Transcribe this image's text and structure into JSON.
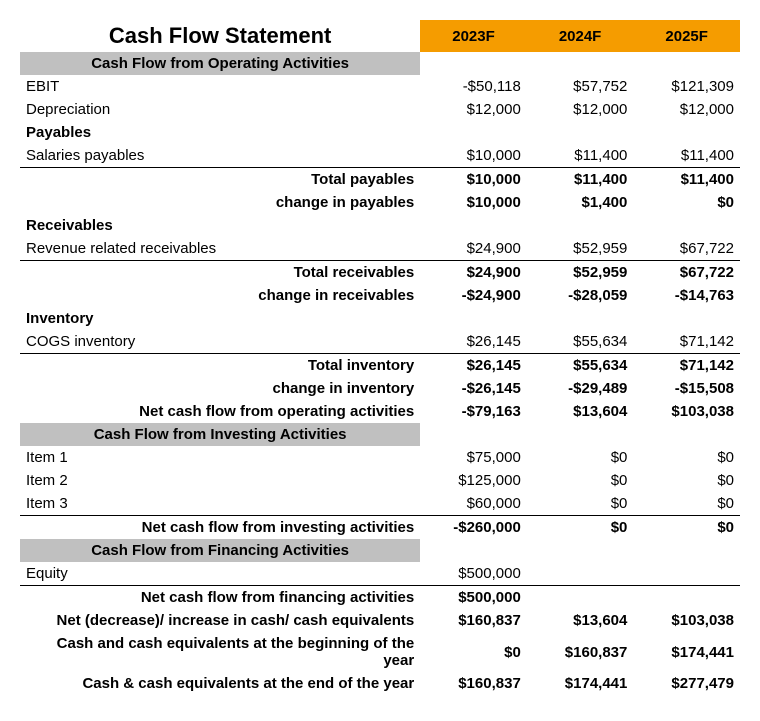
{
  "colors": {
    "header_bg": "#f59c00",
    "section_bg": "#c0c0c0",
    "border": "#000000",
    "text": "#000000",
    "background": "#ffffff"
  },
  "title": "Cash Flow Statement",
  "years": [
    "2023F",
    "2024F",
    "2025F"
  ],
  "sections": {
    "operating": "Cash Flow from Operating Activities",
    "investing": "Cash Flow from Investing Activities",
    "financing": "Cash Flow from Financing Activities"
  },
  "rows": {
    "ebit": {
      "label": "EBIT",
      "v": [
        "-$50,118",
        "$57,752",
        "$121,309"
      ]
    },
    "depreciation": {
      "label": "Depreciation",
      "v": [
        "$12,000",
        "$12,000",
        "$12,000"
      ]
    },
    "payables_hdr": {
      "label": "Payables"
    },
    "salaries_payables": {
      "label": "Salaries payables",
      "v": [
        "$10,000",
        "$11,400",
        "$11,400"
      ]
    },
    "total_payables": {
      "label": "Total payables",
      "v": [
        "$10,000",
        "$11,400",
        "$11,400"
      ]
    },
    "change_payables": {
      "label": "change in payables",
      "v": [
        "$10,000",
        "$1,400",
        "$0"
      ]
    },
    "receivables_hdr": {
      "label": "Receivables"
    },
    "rev_receivables": {
      "label": "Revenue related receivables",
      "v": [
        "$24,900",
        "$52,959",
        "$67,722"
      ]
    },
    "total_receivables": {
      "label": "Total receivables",
      "v": [
        "$24,900",
        "$52,959",
        "$67,722"
      ]
    },
    "change_receivables": {
      "label": "change in receivables",
      "v": [
        "-$24,900",
        "-$28,059",
        "-$14,763"
      ]
    },
    "inventory_hdr": {
      "label": "Inventory"
    },
    "cogs_inventory": {
      "label": "COGS inventory",
      "v": [
        "$26,145",
        "$55,634",
        "$71,142"
      ]
    },
    "total_inventory": {
      "label": "Total inventory",
      "v": [
        "$26,145",
        "$55,634",
        "$71,142"
      ]
    },
    "change_inventory": {
      "label": "change in inventory",
      "v": [
        "-$26,145",
        "-$29,489",
        "-$15,508"
      ]
    },
    "net_operating": {
      "label": "Net cash flow from operating activities",
      "v": [
        "-$79,163",
        "$13,604",
        "$103,038"
      ]
    },
    "item1": {
      "label": "Item 1",
      "v": [
        "$75,000",
        "$0",
        "$0"
      ]
    },
    "item2": {
      "label": "Item 2",
      "v": [
        "$125,000",
        "$0",
        "$0"
      ]
    },
    "item3": {
      "label": "Item 3",
      "v": [
        "$60,000",
        "$0",
        "$0"
      ]
    },
    "net_investing": {
      "label": "Net cash flow from investing activities",
      "v": [
        "-$260,000",
        "$0",
        "$0"
      ]
    },
    "equity": {
      "label": "Equity",
      "v": [
        "$500,000",
        "",
        ""
      ]
    },
    "net_financing": {
      "label": "Net cash flow from financing activities",
      "v": [
        "$500,000",
        "",
        ""
      ]
    },
    "net_change": {
      "label": "Net (decrease)/ increase in cash/ cash equivalents",
      "v": [
        "$160,837",
        "$13,604",
        "$103,038"
      ]
    },
    "cash_begin": {
      "label": "Cash and cash equivalents at the beginning of the year",
      "v": [
        "$0",
        "$160,837",
        "$174,441"
      ]
    },
    "cash_end": {
      "label": "Cash & cash equivalents at the end of the year",
      "v": [
        "$160,837",
        "$174,441",
        "$277,479"
      ]
    }
  }
}
